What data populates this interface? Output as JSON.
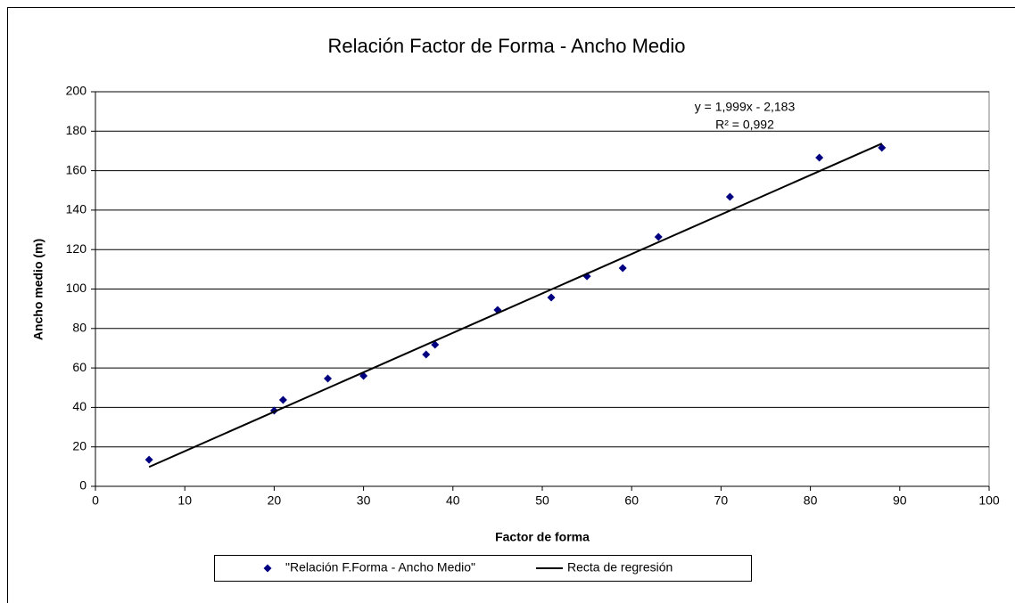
{
  "chart_data": {
    "type": "scatter",
    "title": "Relación Factor de Forma - Ancho Medio",
    "xlabel": "Factor de forma",
    "ylabel": "Ancho medio (m)",
    "series": [
      {
        "name": "\"Relación F.Forma - Ancho Medio\"",
        "color": "#000080",
        "x": [
          6,
          20,
          21,
          26,
          30,
          37,
          38,
          45,
          51,
          55,
          59,
          63,
          71,
          81,
          88
        ],
        "values": [
          13.5,
          38.4,
          43.8,
          54.6,
          56,
          66.8,
          71.8,
          89.4,
          95.7,
          106.5,
          110.6,
          126.4,
          146.7,
          166.6,
          171.6
        ]
      }
    ],
    "trendline": {
      "name": "Recta de regresión",
      "color": "#000000",
      "slope": 1.999,
      "intercept": -2.183,
      "label": "y = 1,999x - 2,183",
      "r2_label": "R² = 0,992"
    },
    "xlim": [
      0,
      100
    ],
    "xticks": [
      0,
      10,
      20,
      30,
      40,
      50,
      60,
      70,
      80,
      90,
      100
    ],
    "ylim": [
      0,
      200
    ],
    "yticks": [
      0,
      20,
      40,
      60,
      80,
      100,
      120,
      140,
      160,
      180,
      200
    ],
    "grid": true,
    "legend": "bottom"
  }
}
